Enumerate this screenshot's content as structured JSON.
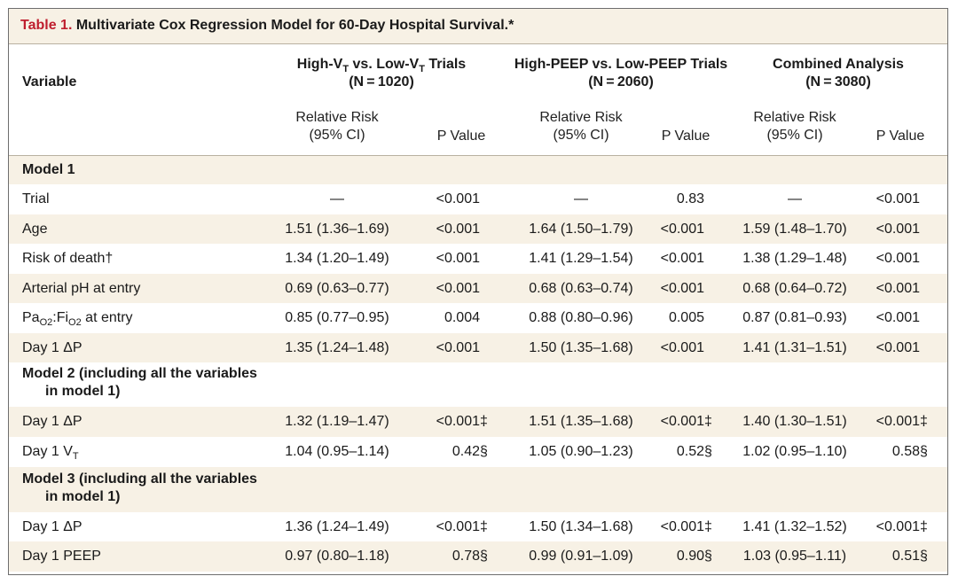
{
  "title": {
    "label": "Table 1.",
    "text": "Multivariate Cox Regression Model for 60-Day Hospital Survival.*"
  },
  "header": {
    "variable": "Variable",
    "groups": [
      {
        "line1_pre": "High-V",
        "line1_sub1": "T",
        "line1_mid": " vs. Low-V",
        "line1_sub2": "T",
        "line1_post": " Trials",
        "n": "(N = 1020)"
      },
      {
        "line1": "High-PEEP vs. Low-PEEP Trials",
        "n": "(N = 2060)"
      },
      {
        "line1": "Combined Analysis",
        "n": "(N = 3080)"
      }
    ],
    "rr_line1": "Relative Risk",
    "rr_line2": "(95% CI)",
    "pvalue": "P Value"
  },
  "rows": [
    {
      "type": "section",
      "label": "Model 1"
    },
    {
      "type": "data",
      "label": "Trial",
      "cells": [
        "—",
        "<0.001",
        "—",
        "0.83",
        "—",
        "<0.001"
      ],
      "marks": [
        "",
        "",
        ""
      ]
    },
    {
      "type": "data",
      "label": "Age",
      "cells": [
        "1.51 (1.36–1.69)",
        "<0.001",
        "1.64 (1.50–1.79)",
        "<0.001",
        "1.59 (1.48–1.70)",
        "<0.001"
      ],
      "marks": [
        "",
        "",
        ""
      ]
    },
    {
      "type": "data",
      "label": "Risk of death†",
      "cells": [
        "1.34 (1.20–1.49)",
        "<0.001",
        "1.41 (1.29–1.54)",
        "<0.001",
        "1.38 (1.29–1.48)",
        "<0.001"
      ],
      "marks": [
        "",
        "",
        ""
      ]
    },
    {
      "type": "data",
      "label": "Arterial pH at entry",
      "cells": [
        "0.69 (0.63–0.77)",
        "<0.001",
        "0.68 (0.63–0.74)",
        "<0.001",
        "0.68 (0.64–0.72)",
        "<0.001"
      ],
      "marks": [
        "",
        "",
        ""
      ]
    },
    {
      "type": "data",
      "label_pre": "Pa",
      "label_sub1": "O2",
      "label_mid": ":Fi",
      "label_sub2": "O2",
      "label_post": " at entry",
      "cells": [
        "0.85 (0.77–0.95)",
        "0.004",
        "0.88 (0.80–0.96)",
        "0.005",
        "0.87 (0.81–0.93)",
        "<0.001"
      ],
      "marks": [
        "",
        "",
        ""
      ]
    },
    {
      "type": "data",
      "label": "Day 1 ΔP",
      "cells": [
        "1.35 (1.24–1.48)",
        "<0.001",
        "1.50 (1.35–1.68)",
        "<0.001",
        "1.41 (1.31–1.51)",
        "<0.001"
      ],
      "marks": [
        "",
        "",
        ""
      ]
    },
    {
      "type": "section",
      "label": "Model 2 (including all the variables",
      "label2": "in model 1)"
    },
    {
      "type": "data",
      "label": "Day 1 ΔP",
      "cells": [
        "1.32 (1.19–1.47)",
        "<0.001",
        "1.51 (1.35–1.68)",
        "<0.001",
        "1.40 (1.30–1.51)",
        "<0.001"
      ],
      "marks": [
        "‡",
        "‡",
        "‡"
      ]
    },
    {
      "type": "data",
      "label_pre": "Day 1 V",
      "label_sub1": "T",
      "cells": [
        "1.04 (0.95–1.14)",
        "0.42",
        "1.05 (0.90–1.23)",
        "0.52",
        "1.02 (0.95–1.10)",
        "0.58"
      ],
      "marks": [
        "§",
        "§",
        "§"
      ]
    },
    {
      "type": "section",
      "label": "Model 3 (including all the variables",
      "label2": "in model 1)"
    },
    {
      "type": "data",
      "label": "Day 1 ΔP",
      "cells": [
        "1.36 (1.24–1.49)",
        "<0.001",
        "1.50 (1.34–1.68)",
        "<0.001",
        "1.41 (1.32–1.52)",
        "<0.001"
      ],
      "marks": [
        "‡",
        "‡",
        "‡"
      ]
    },
    {
      "type": "data",
      "label": "Day 1 PEEP",
      "cells": [
        "0.97 (0.80–1.18)",
        "0.78",
        "0.99 (0.91–1.09)",
        "0.90",
        "1.03 (0.95–1.11)",
        "0.51"
      ],
      "marks": [
        "§",
        "§",
        "§"
      ]
    }
  ],
  "colors": {
    "title_label": "#bf1e2e",
    "shade": "#f7f1e5",
    "border": "#6e6e6e"
  }
}
